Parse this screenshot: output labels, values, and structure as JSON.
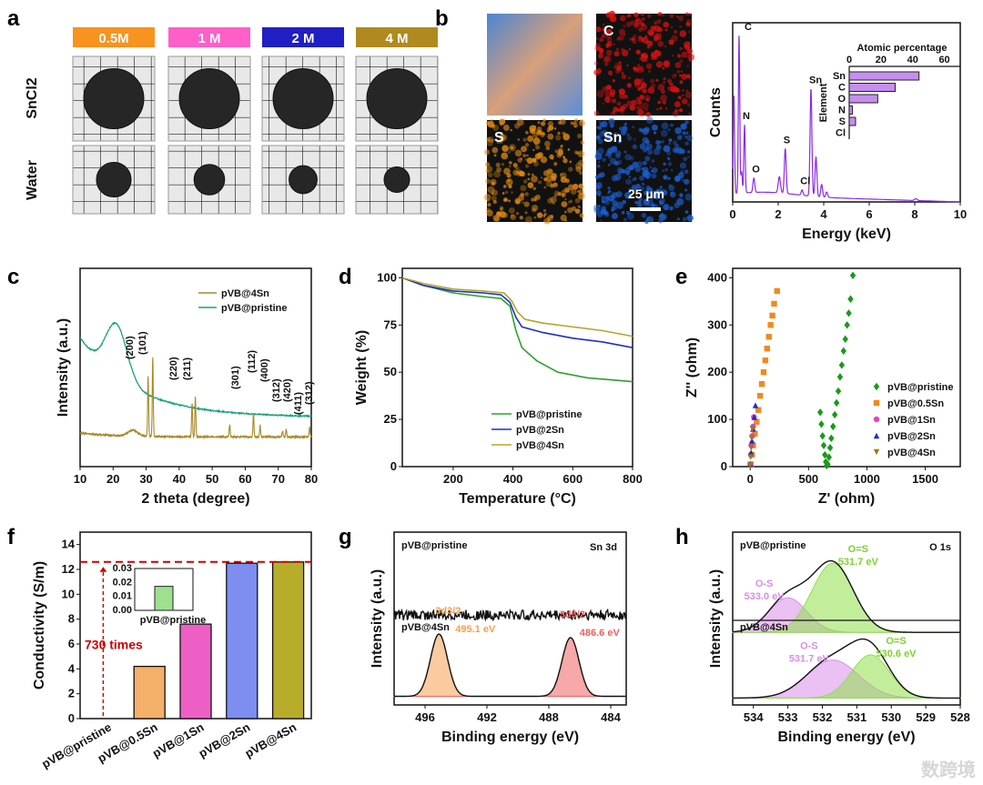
{
  "panel_labels": [
    "a",
    "b",
    "c",
    "d",
    "e",
    "f",
    "g",
    "h"
  ],
  "panel_a": {
    "concentrations": [
      {
        "label": "0.5M",
        "color": "#f7931e"
      },
      {
        "label": "1 M",
        "color": "#ff5fc8"
      },
      {
        "label": "2 M",
        "color": "#1f1fc4"
      },
      {
        "label": "4 M",
        "color": "#b08a1f"
      }
    ],
    "rows": [
      "SnCl2",
      "Water"
    ],
    "water_disc_rel_size": [
      0.68,
      0.6,
      0.55,
      0.5
    ]
  },
  "panel_b": {
    "maps": [
      {
        "label": "",
        "color": "#6fa8dc"
      },
      {
        "label": "C",
        "color": "#e01010"
      },
      {
        "label": "S",
        "color": "#e08a10"
      },
      {
        "label": "Sn",
        "color": "#1a5fd6"
      }
    ],
    "scale_bar": "25 µm"
  },
  "chart_data": [
    {
      "id": "b-eds",
      "type": "line",
      "xlabel": "Energy (keV)",
      "ylabel": "Counts",
      "xlim": [
        0,
        10
      ],
      "xticks": [
        0,
        2,
        4,
        6,
        8,
        10
      ],
      "ylim": [
        0,
        1
      ],
      "color": "#8a2be2",
      "peaks": [
        {
          "x": 0.05,
          "h": 0.55,
          "w": 0.03
        },
        {
          "x": 0.28,
          "h": 0.88,
          "w": 0.03
        },
        {
          "x": 0.39,
          "h": 0.12,
          "w": 0.03
        },
        {
          "x": 0.52,
          "h": 0.38,
          "w": 0.03
        },
        {
          "x": 0.93,
          "h": 0.08,
          "w": 0.04
        },
        {
          "x": 2.05,
          "h": 0.09,
          "w": 0.05
        },
        {
          "x": 2.31,
          "h": 0.25,
          "w": 0.04
        },
        {
          "x": 3.05,
          "h": 0.03,
          "w": 0.04
        },
        {
          "x": 3.44,
          "h": 0.6,
          "w": 0.04
        },
        {
          "x": 3.66,
          "h": 0.22,
          "w": 0.04
        },
        {
          "x": 3.91,
          "h": 0.07,
          "w": 0.04
        },
        {
          "x": 4.13,
          "h": 0.03,
          "w": 0.04
        },
        {
          "x": 8.05,
          "h": 0.01,
          "w": 0.06
        }
      ],
      "peak_labels": [
        {
          "x": 0.28,
          "text": "C"
        },
        {
          "x": 0.52,
          "text": "N"
        },
        {
          "x": 0.93,
          "text": "O"
        },
        {
          "x": 2.31,
          "text": "S"
        },
        {
          "x": 3.05,
          "text": "Cl"
        },
        {
          "x": 3.44,
          "text": "Sn"
        }
      ],
      "inset": {
        "type": "bar-horizontal",
        "title": "Atomic percentage",
        "ylabel": "Element",
        "categories": [
          "Sn",
          "C",
          "O",
          "N",
          "S",
          "Cl"
        ],
        "values": [
          44,
          29,
          18,
          2,
          4,
          0
        ],
        "xlim": [
          0,
          70
        ],
        "xticks": [
          0,
          20,
          40,
          60
        ],
        "color": "#c58ef0"
      }
    },
    {
      "id": "c-xrd",
      "type": "line",
      "xlabel": "2 theta (degree)",
      "ylabel": "Intensity (a.u.)",
      "xlim": [
        10,
        80
      ],
      "xticks": [
        10,
        20,
        30,
        40,
        50,
        60,
        70,
        80
      ],
      "ylim": [
        0,
        1
      ],
      "series": [
        {
          "name": "pVB@4Sn",
          "color": "#a8892a",
          "base": 0.15,
          "peaks": [
            {
              "x": 26,
              "h": 0.03,
              "w": 1.5
            },
            {
              "x": 30.6,
              "h": 0.3,
              "w": 0.15
            },
            {
              "x": 32.0,
              "h": 0.4,
              "w": 0.15
            },
            {
              "x": 43.9,
              "h": 0.17,
              "w": 0.15
            },
            {
              "x": 44.9,
              "h": 0.2,
              "w": 0.15
            },
            {
              "x": 55.3,
              "h": 0.06,
              "w": 0.15
            },
            {
              "x": 62.5,
              "h": 0.12,
              "w": 0.15
            },
            {
              "x": 64.5,
              "h": 0.06,
              "w": 0.15
            },
            {
              "x": 71.3,
              "h": 0.03,
              "w": 0.15
            },
            {
              "x": 72.4,
              "h": 0.04,
              "w": 0.15
            },
            {
              "x": 79.5,
              "h": 0.05,
              "w": 0.15
            }
          ]
        },
        {
          "name": "pVB@pristine",
          "color": "#1aa37a",
          "base": 0.25,
          "decay": 0.4,
          "peaks": [
            {
              "x": 21,
              "h": 0.27,
              "w": 3.2
            }
          ]
        }
      ],
      "hkl": [
        {
          "x": 30.6,
          "t": "(200)"
        },
        {
          "x": 32.0,
          "t": "(101)"
        },
        {
          "x": 43.9,
          "t": "(220)"
        },
        {
          "x": 44.9,
          "t": "(211)"
        },
        {
          "x": 55.3,
          "t": "(301)"
        },
        {
          "x": 62.5,
          "t": "(112)"
        },
        {
          "x": 64.5,
          "t": "(400)"
        },
        {
          "x": 67.3,
          "t": "(312)"
        },
        {
          "x": 70.3,
          "t": "(420)"
        },
        {
          "x": 72.6,
          "t": "(411)"
        },
        {
          "x": 79.0,
          "t": "(312)"
        }
      ],
      "legend": "top-right"
    },
    {
      "id": "d-tga",
      "type": "line",
      "xlabel": "Temperature (°C)",
      "ylabel": "Weight (%)",
      "xlim": [
        30,
        800
      ],
      "xticks": [
        200,
        400,
        600,
        800
      ],
      "ylim": [
        0,
        105
      ],
      "yticks": [
        0,
        25,
        50,
        75,
        100
      ],
      "series": [
        {
          "name": "pVB@pristine",
          "color": "#2ca02c",
          "points": [
            [
              30,
              100
            ],
            [
              100,
              96
            ],
            [
              200,
              92
            ],
            [
              300,
              90
            ],
            [
              360,
              89
            ],
            [
              390,
              85
            ],
            [
              410,
              72
            ],
            [
              430,
              63
            ],
            [
              480,
              56
            ],
            [
              550,
              50
            ],
            [
              650,
              47
            ],
            [
              800,
              45
            ]
          ]
        },
        {
          "name": "pVB@2Sn",
          "color": "#1f2fc4",
          "points": [
            [
              30,
              100
            ],
            [
              100,
              96
            ],
            [
              200,
              93
            ],
            [
              300,
              92
            ],
            [
              360,
              91
            ],
            [
              390,
              87
            ],
            [
              410,
              79
            ],
            [
              430,
              74
            ],
            [
              500,
              71
            ],
            [
              600,
              68
            ],
            [
              700,
              66
            ],
            [
              800,
              63
            ]
          ]
        },
        {
          "name": "pVB@4Sn",
          "color": "#b5a52a",
          "points": [
            [
              30,
              100
            ],
            [
              100,
              97
            ],
            [
              200,
              94
            ],
            [
              300,
              93
            ],
            [
              370,
              92
            ],
            [
              395,
              88
            ],
            [
              415,
              82
            ],
            [
              440,
              78
            ],
            [
              500,
              76
            ],
            [
              600,
              74
            ],
            [
              700,
              72
            ],
            [
              800,
              69
            ]
          ]
        }
      ],
      "legend": "bottom-center"
    },
    {
      "id": "e-eis",
      "type": "scatter",
      "xlabel": "Z' (ohm)",
      "ylabel": "Z'' (ohm)",
      "xlim": [
        -150,
        1800
      ],
      "xticks": [
        0,
        500,
        1000,
        1500
      ],
      "ylim": [
        0,
        420
      ],
      "yticks": [
        0,
        100,
        200,
        300,
        400
      ],
      "series": [
        {
          "name": "pVB@pristine",
          "color": "#1a9a1a",
          "marker": "diamond",
          "points": [
            [
              600,
              115
            ],
            [
              610,
              90
            ],
            [
              620,
              65
            ],
            [
              630,
              45
            ],
            [
              640,
              25
            ],
            [
              648,
              10
            ],
            [
              655,
              2
            ],
            [
              665,
              5
            ],
            [
              675,
              20
            ],
            [
              685,
              40
            ],
            [
              695,
              60
            ],
            [
              710,
              85
            ],
            [
              725,
              110
            ],
            [
              740,
              135
            ],
            [
              755,
              160
            ],
            [
              770,
              190
            ],
            [
              785,
              215
            ],
            [
              800,
              245
            ],
            [
              815,
              270
            ],
            [
              830,
              300
            ],
            [
              845,
              325
            ],
            [
              860,
              355
            ],
            [
              880,
              405
            ]
          ]
        },
        {
          "name": "pVB@0.5Sn",
          "color": "#f08a1c",
          "marker": "square",
          "points": [
            [
              5,
              5
            ],
            [
              15,
              25
            ],
            [
              25,
              45
            ],
            [
              40,
              70
            ],
            [
              55,
              95
            ],
            [
              70,
              120
            ],
            [
              85,
              150
            ],
            [
              100,
              175
            ],
            [
              115,
              200
            ],
            [
              130,
              225
            ],
            [
              145,
              250
            ],
            [
              160,
              275
            ],
            [
              175,
              300
            ],
            [
              190,
              320
            ],
            [
              205,
              345
            ],
            [
              230,
              372
            ]
          ]
        },
        {
          "name": "pVB@1Sn",
          "color": "#ee3cc6",
          "marker": "circle",
          "points": [
            [
              0,
              5
            ],
            [
              5,
              25
            ],
            [
              10,
              45
            ],
            [
              18,
              65
            ],
            [
              25,
              85
            ],
            [
              32,
              105
            ]
          ]
        },
        {
          "name": "pVB@2Sn",
          "color": "#1a2fc4",
          "marker": "triangle",
          "points": [
            [
              2,
              5
            ],
            [
              8,
              30
            ],
            [
              15,
              55
            ],
            [
              25,
              80
            ],
            [
              35,
              105
            ],
            [
              45,
              130
            ]
          ]
        },
        {
          "name": "pVB@4Sn",
          "color": "#9a7a1a",
          "marker": "triangle-down",
          "points": [
            [
              0,
              3
            ],
            [
              4,
              20
            ],
            [
              8,
              40
            ],
            [
              14,
              60
            ],
            [
              20,
              80
            ]
          ]
        }
      ],
      "legend": "right"
    },
    {
      "id": "f-conductivity",
      "type": "bar",
      "xlabel": "",
      "ylabel": "Conductivity (S/m)",
      "categories": [
        "pVB@pristine",
        "pVB@0.5Sn",
        "pVB@1Sn",
        "pVB@2Sn",
        "pVB@4Sn"
      ],
      "values": [
        0.0172,
        4.2,
        7.6,
        12.5,
        12.6
      ],
      "colors": [
        "#9fe08f",
        "#f5b06a",
        "#ee5fc6",
        "#7d8ef0",
        "#b8ad2a"
      ],
      "ylim": [
        0,
        15
      ],
      "yticks": [
        0,
        2,
        4,
        6,
        8,
        10,
        12,
        14
      ],
      "annotation": "730 times",
      "reference_line": 12.6,
      "inset": {
        "categories": [
          "pVB@pristine"
        ],
        "values": [
          0.0172
        ],
        "ylim": [
          0,
          0.03
        ],
        "yticks": [
          "0.00",
          "0.01",
          "0.02",
          "0.03"
        ]
      }
    },
    {
      "id": "g-xps-sn3d",
      "type": "line",
      "xlabel": "Binding energy (eV)",
      "ylabel": "Intensity (a.u.)",
      "xlim": [
        498,
        483
      ],
      "xticks": [
        496,
        492,
        488,
        484
      ],
      "ylim": [
        0,
        1
      ],
      "title": "Sn 3d",
      "spectra": [
        {
          "name": "pVB@pristine",
          "base": 0.52,
          "noise": 0.03,
          "components": []
        },
        {
          "name": "pVB@4Sn",
          "base": 0.05,
          "components": [
            {
              "x": 495.1,
              "h": 0.36,
              "w": 0.55,
              "color": "#f5a050",
              "label": "3d3/2",
              "value": "495.1 eV"
            },
            {
              "x": 486.6,
              "h": 0.34,
              "w": 0.55,
              "color": "#f06060",
              "label": "3d5/2",
              "value": "486.6 eV"
            }
          ]
        }
      ]
    },
    {
      "id": "h-xps-o1s",
      "type": "line",
      "xlabel": "Binding energy (eV)",
      "ylabel": "Intensity (a.u.)",
      "xlim": [
        534.6,
        528
      ],
      "xticks": [
        534,
        533,
        532,
        531,
        530,
        529,
        528
      ],
      "ylim": [
        0,
        1
      ],
      "title": "O 1s",
      "spectra": [
        {
          "name": "pVB@pristine",
          "base": 0.42,
          "components": [
            {
              "x": 533.0,
              "h": 0.2,
              "w": 0.55,
              "color": "#d98ee8",
              "label": "O-S",
              "value": "533.0 eV"
            },
            {
              "x": 531.7,
              "h": 0.4,
              "w": 0.6,
              "color": "#8fe04a",
              "label": "O=S",
              "value": "531.7 eV"
            }
          ]
        },
        {
          "name": "pVB@4Sn",
          "base": 0.04,
          "components": [
            {
              "x": 531.7,
              "h": 0.22,
              "w": 0.75,
              "color": "#d98ee8",
              "label": "O-S",
              "value": "531.7 eV"
            },
            {
              "x": 530.6,
              "h": 0.25,
              "w": 0.55,
              "color": "#8fe04a",
              "label": "O=S",
              "value": "530.6 eV"
            }
          ]
        }
      ]
    }
  ],
  "watermark": "数跨境"
}
